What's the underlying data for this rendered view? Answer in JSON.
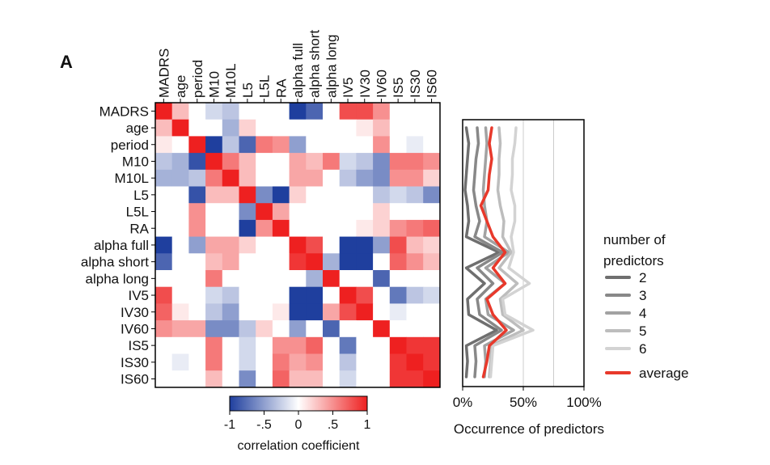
{
  "panel_label": "A",
  "chart_data": [
    {
      "type": "heatmap",
      "variables": [
        "MADRS",
        "age",
        "period",
        "M10",
        "M10L",
        "L5",
        "L5L",
        "RA",
        "alpha full",
        "alpha short",
        "alpha long",
        "IV5",
        "IV30",
        "IV60",
        "IS5",
        "IS30",
        "IS60"
      ],
      "matrix": [
        [
          1.0,
          0.3,
          0.0,
          -0.2,
          -0.3,
          0.0,
          0.0,
          0.0,
          -1.0,
          -0.8,
          0.0,
          0.8,
          0.8,
          0.5,
          0.0,
          0.0,
          0.0
        ],
        [
          0.3,
          1.0,
          0.0,
          0.0,
          -0.4,
          0.2,
          0.0,
          0.0,
          0.0,
          0.0,
          0.0,
          0.0,
          0.1,
          0.3,
          0.0,
          0.0,
          0.0
        ],
        [
          0.1,
          0.0,
          1.0,
          -1.0,
          -0.3,
          -0.8,
          0.6,
          0.5,
          -0.5,
          0.0,
          0.0,
          0.0,
          0.0,
          0.5,
          0.0,
          -0.1,
          0.0
        ],
        [
          -0.3,
          -0.4,
          -0.9,
          1.0,
          0.6,
          0.3,
          0.0,
          0.0,
          0.4,
          0.3,
          0.6,
          -0.2,
          -0.3,
          -0.6,
          0.6,
          0.6,
          0.5
        ],
        [
          -0.4,
          -0.4,
          -0.3,
          0.6,
          1.0,
          0.3,
          0.0,
          0.0,
          0.4,
          0.4,
          0.0,
          -0.3,
          -0.5,
          -0.6,
          0.5,
          0.5,
          0.2
        ],
        [
          0.0,
          0.0,
          -0.9,
          0.3,
          0.3,
          1.0,
          -0.6,
          -1.0,
          0.2,
          0.0,
          0.0,
          0.0,
          0.0,
          -0.3,
          -0.2,
          -0.3,
          -0.6
        ],
        [
          0.0,
          0.0,
          0.5,
          0.0,
          0.0,
          -0.6,
          1.0,
          0.4,
          0.0,
          0.0,
          0.0,
          0.0,
          0.0,
          0.2,
          0.0,
          0.0,
          0.0
        ],
        [
          0.0,
          0.0,
          0.5,
          0.0,
          0.0,
          -1.0,
          0.5,
          1.0,
          0.0,
          0.0,
          0.0,
          0.0,
          0.1,
          0.2,
          0.5,
          0.6,
          0.7
        ],
        [
          -1.0,
          0.0,
          -0.5,
          0.4,
          0.4,
          0.2,
          0.0,
          0.0,
          1.0,
          0.8,
          0.0,
          -1.0,
          -1.0,
          -0.5,
          0.8,
          0.3,
          0.2
        ],
        [
          -0.8,
          0.0,
          0.0,
          0.3,
          0.4,
          0.0,
          0.0,
          0.0,
          0.9,
          1.0,
          -0.4,
          -1.0,
          -1.0,
          0.0,
          0.7,
          0.5,
          0.3
        ],
        [
          0.0,
          0.0,
          0.0,
          0.6,
          0.0,
          0.0,
          0.0,
          0.0,
          0.0,
          -0.4,
          1.0,
          0.0,
          0.0,
          -0.8,
          0.0,
          0.0,
          0.0
        ],
        [
          0.8,
          0.0,
          0.0,
          -0.2,
          -0.3,
          0.0,
          0.0,
          0.0,
          -1.0,
          -1.0,
          0.0,
          1.0,
          0.8,
          0.0,
          -0.7,
          -0.3,
          -0.2
        ],
        [
          0.7,
          0.1,
          0.0,
          -0.3,
          -0.5,
          0.0,
          0.0,
          0.1,
          -1.0,
          -1.0,
          0.4,
          0.8,
          1.0,
          0.0,
          -0.1,
          0.0,
          0.0
        ],
        [
          0.5,
          0.4,
          0.4,
          -0.6,
          -0.6,
          -0.3,
          0.2,
          0.0,
          -0.5,
          0.0,
          -0.8,
          0.0,
          0.0,
          1.0,
          0.0,
          0.0,
          0.0
        ],
        [
          0.0,
          0.0,
          0.0,
          0.6,
          0.0,
          -0.2,
          0.0,
          0.5,
          0.5,
          0.7,
          0.0,
          -0.7,
          0.0,
          0.0,
          1.0,
          0.9,
          0.9
        ],
        [
          0.0,
          -0.1,
          0.0,
          0.6,
          0.0,
          -0.2,
          0.0,
          0.6,
          0.4,
          0.5,
          0.0,
          -0.3,
          0.0,
          0.0,
          0.9,
          1.0,
          0.9
        ],
        [
          0.0,
          0.0,
          0.0,
          0.3,
          0.0,
          -0.6,
          0.0,
          0.7,
          0.3,
          0.3,
          0.0,
          -0.2,
          0.0,
          0.0,
          0.9,
          0.9,
          1.0
        ]
      ],
      "colorbar": {
        "ticks": [
          "-1",
          "-.5",
          "0",
          ".5",
          "1"
        ],
        "label": "correlation coefficient",
        "range": [
          -1,
          1
        ],
        "colors": {
          "negative": "#1f3f9e",
          "zero": "#ffffff",
          "positive": "#ee2020"
        }
      }
    },
    {
      "type": "line",
      "xlabel": "Occurrence of predictors",
      "xticks": [
        "0%",
        "50%",
        "100%"
      ],
      "xlim": [
        0,
        100
      ],
      "categories": [
        "MADRS",
        "age",
        "period",
        "M10",
        "M10L",
        "L5",
        "L5L",
        "RA",
        "alpha full",
        "alpha short",
        "alpha long",
        "IV5",
        "IV30",
        "IV60",
        "IS5",
        "IS30",
        "IS60"
      ],
      "legend": {
        "title": "number of predictors",
        "position": "right"
      },
      "series": [
        {
          "name": "2",
          "color": "#6f6f6f",
          "values": [
            3,
            5,
            4,
            3,
            2,
            4,
            5,
            3,
            30,
            3,
            18,
            4,
            5,
            28,
            3,
            4,
            3
          ]
        },
        {
          "name": "3",
          "color": "#888888",
          "values": [
            12,
            13,
            11,
            10,
            9,
            11,
            14,
            10,
            33,
            12,
            25,
            12,
            14,
            32,
            10,
            11,
            10
          ]
        },
        {
          "name": "4",
          "color": "#a2a2a2",
          "values": [
            19,
            20,
            19,
            18,
            17,
            18,
            20,
            18,
            38,
            19,
            35,
            19,
            21,
            42,
            18,
            19,
            18
          ]
        },
        {
          "name": "5",
          "color": "#bdbdbd",
          "values": [
            30,
            31,
            30,
            30,
            29,
            31,
            34,
            33,
            40,
            30,
            45,
            31,
            33,
            50,
            23,
            23,
            22
          ]
        },
        {
          "name": "6",
          "color": "#d3d3d3",
          "values": [
            44,
            43,
            41,
            41,
            40,
            43,
            43,
            40,
            42,
            38,
            55,
            33,
            35,
            58,
            25,
            24,
            23
          ]
        },
        {
          "name": "average",
          "color": "#e8392b",
          "values": [
            24,
            22,
            24,
            22,
            21,
            15,
            20,
            25,
            35,
            25,
            35,
            20,
            25,
            36,
            22,
            20,
            17
          ]
        }
      ]
    }
  ]
}
